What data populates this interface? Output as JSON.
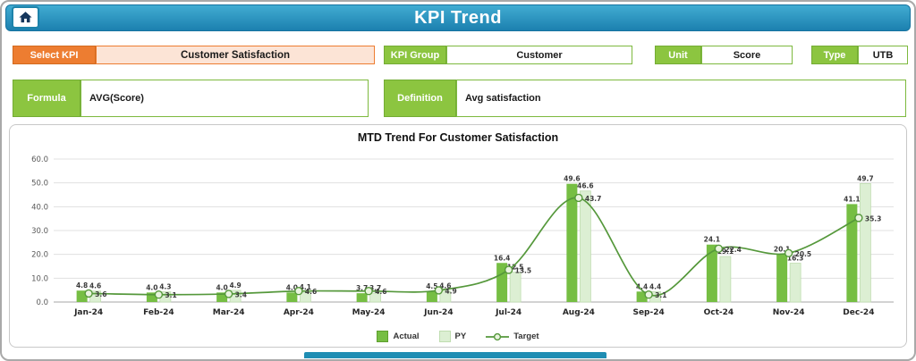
{
  "header": {
    "title": "KPI Trend"
  },
  "icons": {
    "home": "house-icon"
  },
  "controls": {
    "select_kpi": {
      "label": "Select KPI",
      "value": "Customer Satisfaction"
    },
    "kpi_group": {
      "label": "KPI Group",
      "value": "Customer"
    },
    "unit": {
      "label": "Unit",
      "value": "Score"
    },
    "type": {
      "label": "Type",
      "value": "UTB"
    },
    "formula": {
      "label": "Formula",
      "value": "AVG(Score)"
    },
    "definition": {
      "label": "Definition",
      "value": "Avg satisfaction"
    }
  },
  "chart_data": {
    "type": "bar",
    "title": "MTD Trend For Customer Satisfaction",
    "categories": [
      "Jan-24",
      "Feb-24",
      "Mar-24",
      "Apr-24",
      "May-24",
      "Jun-24",
      "Jul-24",
      "Aug-24",
      "Sep-24",
      "Oct-24",
      "Nov-24",
      "Dec-24"
    ],
    "series": [
      {
        "name": "Actual",
        "type": "bar",
        "color": "#76be43",
        "values": [
          4.8,
          4.0,
          4.0,
          4.0,
          3.7,
          4.5,
          16.4,
          49.6,
          4.4,
          24.1,
          20.1,
          41.1
        ]
      },
      {
        "name": "PY",
        "type": "bar",
        "color": "#dcefd3",
        "values": [
          4.6,
          4.3,
          4.9,
          4.1,
          3.7,
          4.6,
          12.5,
          46.6,
          4.4,
          19.1,
          16.3,
          49.7
        ]
      },
      {
        "name": "Target",
        "type": "line",
        "color": "#55983b",
        "marker_fill": "#e9f4df",
        "values": [
          3.6,
          3.1,
          3.4,
          4.6,
          4.6,
          4.9,
          13.5,
          43.7,
          3.1,
          22.4,
          20.5,
          35.3
        ]
      }
    ],
    "ylim": [
      0,
      60
    ],
    "ytick_step": 10,
    "ytick_labels": [
      "0.0",
      "10.0",
      "20.0",
      "30.0",
      "40.0",
      "50.0",
      "60.0"
    ],
    "grid": true,
    "legend_position": "bottom"
  },
  "colors": {
    "header_blue_top": "#41acd2",
    "header_blue_bottom": "#1c80af",
    "accent_orange": "#ed7d31",
    "orange_fill": "#fce4d6",
    "accent_green": "#8cc540",
    "green_border": "#7db93e",
    "footer_teal": "#1f8db3"
  }
}
